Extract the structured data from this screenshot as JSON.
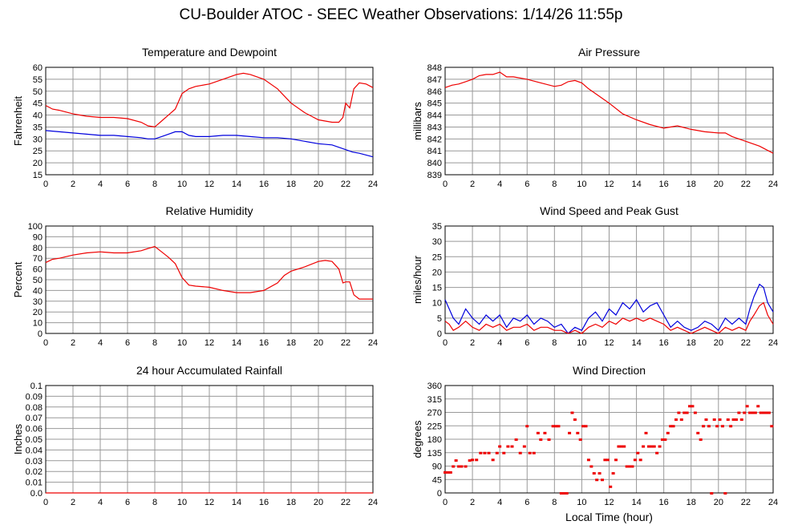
{
  "page": {
    "title": "CU-Boulder ATOC - SEEC Weather Observations: 1/14/26 11:55p"
  },
  "colors": {
    "red": "#ee0000",
    "blue": "#0000dd",
    "grid": "#999999"
  },
  "chart_data": [
    {
      "id": "temp",
      "type": "line",
      "title": "Temperature and Dewpoint",
      "ylabel": "Fahrenheit",
      "xlabel": "",
      "xlim": [
        0,
        24
      ],
      "ylim": [
        15,
        60
      ],
      "xticks": [
        0,
        2,
        4,
        6,
        8,
        10,
        12,
        14,
        16,
        18,
        20,
        22,
        24
      ],
      "yticks": [
        15,
        20,
        25,
        30,
        35,
        40,
        45,
        50,
        55,
        60
      ],
      "grid": true,
      "series": [
        {
          "color": "red",
          "x": [
            0,
            0.5,
            1,
            2,
            3,
            4,
            5,
            6,
            7,
            7.5,
            8,
            8.5,
            9,
            9.5,
            10,
            10.5,
            11,
            12,
            13,
            14,
            14.5,
            15,
            16,
            17,
            18,
            19,
            20,
            21,
            21.5,
            21.8,
            22,
            22.3,
            22.6,
            23,
            23.5,
            24
          ],
          "y": [
            44,
            42.5,
            42,
            40.5,
            39.5,
            39,
            39,
            38.5,
            37,
            35.5,
            35,
            37.5,
            40,
            42.5,
            49,
            51,
            52,
            53,
            55,
            57,
            57.5,
            57,
            55,
            51,
            45,
            41,
            38,
            37,
            37,
            39,
            45,
            43,
            51,
            53.5,
            53,
            51.5
          ]
        },
        {
          "color": "blue",
          "x": [
            0,
            1,
            2,
            3,
            4,
            5,
            6,
            7,
            7.5,
            8,
            8.5,
            9,
            9.5,
            10,
            10.5,
            11,
            12,
            13,
            14,
            15,
            16,
            17,
            18,
            19,
            20,
            21,
            22,
            22.5,
            23,
            24
          ],
          "y": [
            33.5,
            33,
            32.5,
            32,
            31.5,
            31.5,
            31,
            30.5,
            30,
            30,
            31,
            32,
            33,
            33,
            31.5,
            31,
            31,
            31.5,
            31.5,
            31,
            30.5,
            30.5,
            30,
            29,
            28,
            27.5,
            25.5,
            24.5,
            24,
            22.5
          ]
        }
      ]
    },
    {
      "id": "pressure",
      "type": "line",
      "title": "Air Pressure",
      "ylabel": "millibars",
      "xlabel": "",
      "xlim": [
        0,
        24
      ],
      "ylim": [
        839,
        848
      ],
      "xticks": [
        0,
        2,
        4,
        6,
        8,
        10,
        12,
        14,
        16,
        18,
        20,
        22,
        24
      ],
      "yticks": [
        839,
        840,
        841,
        842,
        843,
        844,
        845,
        846,
        847,
        848
      ],
      "grid": true,
      "series": [
        {
          "color": "red",
          "x": [
            0,
            0.5,
            1,
            1.5,
            2,
            2.5,
            3,
            3.5,
            4,
            4.5,
            5,
            6,
            7,
            8,
            8.5,
            9,
            9.5,
            10,
            10.5,
            11,
            12,
            13,
            14,
            15,
            16,
            17,
            18,
            19,
            20,
            20.5,
            21,
            22,
            23,
            24
          ],
          "y": [
            846.3,
            846.5,
            846.6,
            846.8,
            847,
            847.3,
            847.4,
            847.4,
            847.6,
            847.2,
            847.2,
            847.0,
            846.7,
            846.4,
            846.5,
            846.8,
            846.9,
            846.7,
            846.2,
            845.8,
            845.0,
            844.1,
            843.6,
            843.2,
            842.9,
            843.1,
            842.8,
            842.6,
            842.5,
            842.5,
            842.2,
            841.8,
            841.4,
            840.8
          ]
        }
      ]
    },
    {
      "id": "rh",
      "type": "line",
      "title": "Relative Humidity",
      "ylabel": "Percent",
      "xlabel": "",
      "xlim": [
        0,
        24
      ],
      "ylim": [
        0,
        100
      ],
      "xticks": [
        0,
        2,
        4,
        6,
        8,
        10,
        12,
        14,
        16,
        18,
        20,
        22,
        24
      ],
      "yticks": [
        0,
        10,
        20,
        30,
        40,
        50,
        60,
        70,
        80,
        90,
        100
      ],
      "grid": true,
      "series": [
        {
          "color": "red",
          "x": [
            0,
            0.5,
            1,
            2,
            3,
            4,
            5,
            6,
            7,
            7.5,
            8,
            8.5,
            9,
            9.5,
            10,
            10.5,
            11,
            12,
            13,
            14,
            15,
            16,
            17,
            17.5,
            18,
            19,
            20,
            20.5,
            21,
            21.5,
            21.8,
            22,
            22.3,
            22.6,
            23,
            24
          ],
          "y": [
            66,
            69,
            70,
            73,
            75,
            76,
            75,
            75,
            77,
            79,
            81,
            76,
            71,
            65,
            52,
            45,
            44,
            43,
            40,
            38,
            38,
            40,
            47,
            54,
            58,
            62,
            67,
            68,
            67,
            60,
            47,
            48,
            48,
            36,
            32,
            32
          ]
        }
      ]
    },
    {
      "id": "wind",
      "type": "line",
      "title": "Wind Speed and Peak Gust",
      "ylabel": "miles/hour",
      "xlabel": "",
      "xlim": [
        0,
        24
      ],
      "ylim": [
        0,
        35
      ],
      "xticks": [
        0,
        2,
        4,
        6,
        8,
        10,
        12,
        14,
        16,
        18,
        20,
        22,
        24
      ],
      "yticks": [
        0,
        5,
        10,
        15,
        20,
        25,
        30,
        35
      ],
      "grid": true,
      "series": [
        {
          "color": "blue",
          "x": [
            0,
            0.3,
            0.6,
            1,
            1.5,
            2,
            2.5,
            3,
            3.5,
            4,
            4.5,
            5,
            5.5,
            6,
            6.5,
            7,
            7.5,
            8,
            8.5,
            9,
            9.5,
            10,
            10.5,
            11,
            11.5,
            12,
            12.5,
            13,
            13.5,
            14,
            14.5,
            15,
            15.5,
            16,
            16.5,
            17,
            17.5,
            18,
            18.5,
            19,
            19.5,
            20,
            20.5,
            21,
            21.5,
            22,
            22.3,
            22.6,
            23,
            23.3,
            23.6,
            24
          ],
          "y": [
            11,
            8,
            5,
            3,
            8,
            5,
            3,
            6,
            4,
            6,
            2,
            5,
            4,
            6,
            3,
            5,
            4,
            2,
            3,
            0,
            2,
            1,
            5,
            7,
            4,
            8,
            6,
            10,
            8,
            11,
            7,
            9,
            10,
            6,
            2,
            4,
            2,
            1,
            2,
            4,
            3,
            1,
            5,
            3,
            5,
            3,
            8,
            12,
            16,
            15,
            10,
            7
          ]
        },
        {
          "color": "red",
          "x": [
            0,
            0.3,
            0.6,
            1,
            1.5,
            2,
            2.5,
            3,
            3.5,
            4,
            4.5,
            5,
            5.5,
            6,
            6.5,
            7,
            7.5,
            8,
            8.5,
            9,
            9.5,
            10,
            10.5,
            11,
            11.5,
            12,
            12.5,
            13,
            13.5,
            14,
            14.5,
            15,
            15.5,
            16,
            16.5,
            17,
            17.5,
            18,
            18.5,
            19,
            19.5,
            20,
            20.5,
            21,
            21.5,
            22,
            22.3,
            22.6,
            23,
            23.3,
            23.6,
            24
          ],
          "y": [
            4,
            3,
            1,
            2,
            4,
            2,
            1,
            3,
            2,
            3,
            1,
            2,
            2,
            3,
            1,
            2,
            2,
            1,
            1,
            0,
            1,
            0,
            2,
            3,
            2,
            4,
            3,
            5,
            4,
            5,
            4,
            5,
            4,
            3,
            1,
            2,
            1,
            0,
            1,
            2,
            1,
            0,
            2,
            1,
            2,
            1,
            4,
            6,
            9,
            10,
            6,
            3
          ]
        }
      ]
    },
    {
      "id": "rain",
      "type": "line",
      "title": "24 hour Accumulated Rainfall",
      "ylabel": "Inches",
      "xlabel": "",
      "xlim": [
        0,
        24
      ],
      "ylim": [
        0,
        0.1
      ],
      "xticks": [
        0,
        2,
        4,
        6,
        8,
        10,
        12,
        14,
        16,
        18,
        20,
        22,
        24
      ],
      "yticks": [
        "0.0",
        "0.01",
        "0.02",
        "0.03",
        "0.04",
        "0.05",
        "0.06",
        "0.07",
        "0.08",
        "0.09",
        "0.1"
      ],
      "grid": true,
      "series": [
        {
          "color": "red",
          "x": [
            0,
            24
          ],
          "y": [
            0,
            0
          ]
        }
      ]
    },
    {
      "id": "winddir",
      "type": "scatter",
      "title": "Wind Direction",
      "ylabel": "degrees",
      "xlabel": "Local Time (hour)",
      "xlim": [
        0,
        24
      ],
      "ylim": [
        0,
        360
      ],
      "xticks": [
        0,
        2,
        4,
        6,
        8,
        10,
        12,
        14,
        16,
        18,
        20,
        22,
        24
      ],
      "yticks": [
        0,
        45,
        90,
        135,
        180,
        225,
        270,
        315,
        360
      ],
      "grid": true,
      "series": [
        {
          "color": "red",
          "x": [
            0,
            0.2,
            0.4,
            0.6,
            0.8,
            1,
            1.2,
            1.5,
            1.8,
            2,
            2.3,
            2.6,
            2.9,
            3.2,
            3.5,
            3.8,
            4,
            4.3,
            4.6,
            4.9,
            5.2,
            5.5,
            5.8,
            6,
            6.2,
            6.5,
            6.8,
            7,
            7.3,
            7.6,
            7.9,
            8.1,
            8.3,
            8.5,
            8.7,
            8.9,
            9.1,
            9.3,
            9.5,
            9.7,
            9.9,
            10.1,
            10.3,
            10.5,
            10.7,
            10.9,
            11.1,
            11.3,
            11.5,
            11.7,
            11.9,
            12.1,
            12.3,
            12.5,
            12.7,
            12.9,
            13.1,
            13.3,
            13.5,
            13.7,
            13.9,
            14.1,
            14.3,
            14.5,
            14.7,
            14.9,
            15.1,
            15.3,
            15.5,
            15.7,
            15.9,
            16.1,
            16.3,
            16.5,
            16.7,
            16.9,
            17.1,
            17.3,
            17.5,
            17.7,
            17.9,
            18.1,
            18.3,
            18.5,
            18.7,
            18.9,
            19.1,
            19.3,
            19.5,
            19.7,
            19.9,
            20.1,
            20.3,
            20.5,
            20.7,
            20.9,
            21.1,
            21.3,
            21.5,
            21.7,
            21.9,
            22.1,
            22.3,
            22.5,
            22.7,
            22.9,
            23.1,
            23.3,
            23.5,
            23.7,
            23.9
          ],
          "y": [
            70,
            70,
            70,
            90,
            110,
            90,
            90,
            90,
            110,
            112,
            112,
            135,
            135,
            135,
            112,
            135,
            157,
            135,
            157,
            157,
            180,
            135,
            157,
            225,
            135,
            135,
            202,
            180,
            202,
            180,
            225,
            225,
            225,
            0,
            0,
            0,
            202,
            270,
            247,
            202,
            180,
            225,
            225,
            112,
            90,
            67,
            45,
            67,
            45,
            112,
            112,
            22,
            67,
            112,
            157,
            157,
            157,
            90,
            90,
            90,
            112,
            135,
            112,
            157,
            202,
            157,
            157,
            157,
            135,
            157,
            180,
            180,
            202,
            225,
            225,
            247,
            270,
            247,
            270,
            270,
            292,
            292,
            270,
            202,
            180,
            225,
            247,
            225,
            0,
            247,
            225,
            247,
            225,
            0,
            247,
            225,
            247,
            247,
            270,
            247,
            270,
            292,
            270,
            270,
            270,
            292,
            270,
            270,
            270,
            270,
            225
          ]
        }
      ]
    }
  ]
}
